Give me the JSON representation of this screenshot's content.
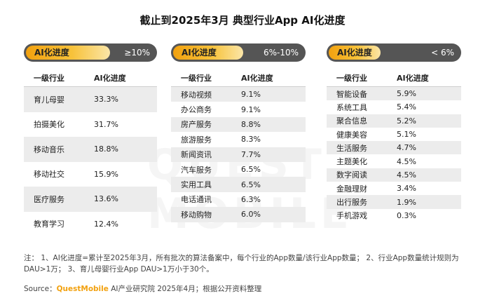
{
  "title": "截止到2025年3月 典型行业App AI化进度",
  "watermark": "QUEST MOBILE",
  "panels": [
    {
      "badge": "AI化进度",
      "range": "≥10%",
      "col1": "一级行业",
      "col2": "AI化进度",
      "rows": [
        {
          "name": "育儿母婴",
          "value": "33.3%"
        },
        {
          "name": "拍摄美化",
          "value": "31.7%"
        },
        {
          "name": "移动音乐",
          "value": "18.8%"
        },
        {
          "name": "移动社交",
          "value": "15.9%"
        },
        {
          "name": "医疗服务",
          "value": "13.6%"
        },
        {
          "name": "教育学习",
          "value": "12.4%"
        }
      ]
    },
    {
      "badge": "AI化进度",
      "range": "6%-10%",
      "col1": "一级行业",
      "col2": "AI化进度",
      "rows": [
        {
          "name": "移动视频",
          "value": "9.1%"
        },
        {
          "name": "办公商务",
          "value": "9.1%"
        },
        {
          "name": "房产服务",
          "value": "8.8%"
        },
        {
          "name": "旅游服务",
          "value": "8.3%"
        },
        {
          "name": "新闻资讯",
          "value": "7.7%"
        },
        {
          "name": "汽车服务",
          "value": "6.5%"
        },
        {
          "name": "实用工具",
          "value": "6.5%"
        },
        {
          "name": "电话通讯",
          "value": "6.3%"
        },
        {
          "name": "移动购物",
          "value": "6.0%"
        }
      ]
    },
    {
      "badge": "AI化进度",
      "range": "< 6%",
      "col1": "一级行业",
      "col2": "AI化进度",
      "rows": [
        {
          "name": "智能设备",
          "value": "5.9%"
        },
        {
          "name": "系统工具",
          "value": "5.4%"
        },
        {
          "name": "聚合信息",
          "value": "5.2%"
        },
        {
          "name": "健康美容",
          "value": "5.1%"
        },
        {
          "name": "生活服务",
          "value": "4.7%"
        },
        {
          "name": "主题美化",
          "value": "4.5%"
        },
        {
          "name": "数字阅读",
          "value": "4.5%"
        },
        {
          "name": "金融理财",
          "value": "3.4%"
        },
        {
          "name": "出行服务",
          "value": "1.9%"
        },
        {
          "name": "手机游戏",
          "value": "0.3%"
        }
      ]
    }
  ],
  "note": "注： 1、AI化进度=累计至2025年3月，所有批次的算法备案中，每个行业的App数量/该行业App数量； 2、行业App数量统计规则为DAU>1万； 3、育儿母婴行业App DAU>1万小于30个。",
  "source": {
    "prefix": "Source：",
    "brand": "QuestMobile",
    "suffix": " AI产业研究院 2025年4月；根据公开资料整理"
  }
}
